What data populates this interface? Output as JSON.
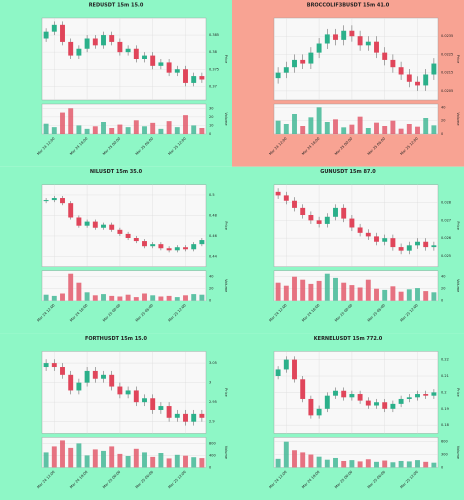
{
  "chart_data": [
    {
      "type": "candlestick",
      "title": "REDUSDT 15m 15.0",
      "background": "#8ef7c6",
      "up_color": "#2bb08a",
      "down_color": "#e0455a",
      "ylabel": "Price",
      "volume_label": "Volume",
      "open": [
        0.384,
        0.386,
        0.388,
        0.383,
        0.379,
        0.381,
        0.384,
        0.382,
        0.385,
        0.383,
        0.38,
        0.381,
        0.378,
        0.379,
        0.376,
        0.377,
        0.374,
        0.375,
        0.371,
        0.373
      ],
      "high": [
        0.387,
        0.389,
        0.389,
        0.384,
        0.382,
        0.385,
        0.385,
        0.386,
        0.386,
        0.384,
        0.382,
        0.382,
        0.38,
        0.38,
        0.378,
        0.378,
        0.376,
        0.376,
        0.374,
        0.374
      ],
      "low": [
        0.383,
        0.385,
        0.382,
        0.378,
        0.378,
        0.38,
        0.381,
        0.381,
        0.382,
        0.379,
        0.379,
        0.377,
        0.377,
        0.375,
        0.375,
        0.373,
        0.373,
        0.37,
        0.37,
        0.371
      ],
      "close": [
        0.386,
        0.388,
        0.383,
        0.379,
        0.381,
        0.384,
        0.382,
        0.385,
        0.383,
        0.38,
        0.381,
        0.378,
        0.379,
        0.376,
        0.377,
        0.374,
        0.375,
        0.371,
        0.373,
        0.372
      ],
      "volume": [
        12,
        8,
        25,
        30,
        10,
        6,
        9,
        14,
        7,
        11,
        8,
        16,
        9,
        13,
        6,
        15,
        8,
        22,
        10,
        7
      ],
      "ylim": [
        0.366,
        0.39
      ],
      "yticks": [
        0.37,
        0.375,
        0.38,
        0.385
      ],
      "volume_lim": [
        0,
        35
      ],
      "volume_ticks": [
        0,
        10,
        20,
        30
      ],
      "xticks": [
        {
          "value": 1,
          "label": "Mar 24 12:00"
        },
        {
          "value": 5,
          "label": "Mar 24 18:00"
        },
        {
          "value": 9,
          "label": "Mar 25 00:00"
        },
        {
          "value": 13,
          "label": "Mar 25 06:00"
        },
        {
          "value": 17,
          "label": "Mar 25 12:00"
        }
      ]
    },
    {
      "type": "candlestick",
      "title": "BROCCOLIF3BUSDT 15m 41.0",
      "background": "#f8a393",
      "up_color": "#2bb08a",
      "down_color": "#e0455a",
      "ylabel": "Price",
      "volume_label": "Volume",
      "open": [
        0.0212,
        0.0215,
        0.0218,
        0.0222,
        0.022,
        0.0226,
        0.0231,
        0.0236,
        0.0233,
        0.0238,
        0.0235,
        0.023,
        0.0232,
        0.0226,
        0.0222,
        0.0218,
        0.0214,
        0.021,
        0.0208,
        0.0214
      ],
      "high": [
        0.0218,
        0.0221,
        0.0225,
        0.0225,
        0.0229,
        0.0234,
        0.0239,
        0.0239,
        0.0241,
        0.0241,
        0.0238,
        0.0235,
        0.0235,
        0.0229,
        0.0225,
        0.0221,
        0.0217,
        0.0213,
        0.0217,
        0.0223
      ],
      "low": [
        0.0209,
        0.0212,
        0.0215,
        0.0217,
        0.0217,
        0.0223,
        0.0228,
        0.023,
        0.023,
        0.0232,
        0.0227,
        0.0227,
        0.0223,
        0.0219,
        0.0215,
        0.0211,
        0.0207,
        0.0205,
        0.0205,
        0.0211
      ],
      "close": [
        0.0215,
        0.0218,
        0.0222,
        0.022,
        0.0226,
        0.0231,
        0.0236,
        0.0233,
        0.0238,
        0.0235,
        0.023,
        0.0232,
        0.0226,
        0.0222,
        0.0218,
        0.0214,
        0.021,
        0.0208,
        0.0214,
        0.022
      ],
      "volume": [
        20,
        15,
        30,
        12,
        25,
        40,
        18,
        22,
        10,
        14,
        26,
        9,
        17,
        12,
        20,
        8,
        15,
        11,
        24,
        13
      ],
      "ylim": [
        0.02,
        0.0245
      ],
      "yticks": [
        0.0205,
        0.0215,
        0.0225,
        0.0235
      ],
      "volume_lim": [
        0,
        45
      ],
      "volume_ticks": [
        0,
        20,
        40
      ],
      "xticks": [
        {
          "value": 1,
          "label": "Mar 24 12:00"
        },
        {
          "value": 5,
          "label": "Mar 24 18:00"
        },
        {
          "value": 9,
          "label": "Mar 25 00:00"
        },
        {
          "value": 13,
          "label": "Mar 25 06:00"
        },
        {
          "value": 17,
          "label": "Mar 25 12:00"
        }
      ]
    },
    {
      "type": "candlestick",
      "title": "NILUSDT 15m 35.0",
      "background": "#8ef7c6",
      "up_color": "#2bb08a",
      "down_color": "#e0455a",
      "ylabel": "Price",
      "volume_label": "Volume",
      "open": [
        0.494,
        0.495,
        0.497,
        0.492,
        0.478,
        0.47,
        0.474,
        0.468,
        0.471,
        0.466,
        0.462,
        0.458,
        0.455,
        0.45,
        0.452,
        0.448,
        0.446,
        0.449,
        0.447,
        0.452
      ],
      "high": [
        0.497,
        0.499,
        0.499,
        0.494,
        0.48,
        0.476,
        0.476,
        0.473,
        0.473,
        0.468,
        0.464,
        0.46,
        0.457,
        0.454,
        0.454,
        0.45,
        0.451,
        0.451,
        0.454,
        0.458
      ],
      "low": [
        0.492,
        0.493,
        0.49,
        0.476,
        0.468,
        0.468,
        0.466,
        0.466,
        0.464,
        0.46,
        0.456,
        0.453,
        0.448,
        0.448,
        0.446,
        0.444,
        0.444,
        0.445,
        0.445,
        0.45
      ],
      "close": [
        0.495,
        0.497,
        0.492,
        0.478,
        0.47,
        0.474,
        0.468,
        0.471,
        0.466,
        0.462,
        0.458,
        0.455,
        0.45,
        0.452,
        0.448,
        0.446,
        0.449,
        0.447,
        0.452,
        0.456
      ],
      "volume": [
        10,
        8,
        12,
        45,
        30,
        14,
        9,
        11,
        8,
        7,
        10,
        6,
        12,
        9,
        7,
        8,
        6,
        9,
        11,
        10
      ],
      "ylim": [
        0.43,
        0.51
      ],
      "yticks": [
        0.44,
        0.46,
        0.48,
        0.5
      ],
      "volume_lim": [
        0,
        50
      ],
      "volume_ticks": [
        0,
        20,
        40
      ],
      "xticks": [
        {
          "value": 1,
          "label": "Mar 24 12:00"
        },
        {
          "value": 5,
          "label": "Mar 24 18:00"
        },
        {
          "value": 9,
          "label": "Mar 25 00:00"
        },
        {
          "value": 13,
          "label": "Mar 25 06:00"
        },
        {
          "value": 17,
          "label": "Mar 25 12:00"
        }
      ]
    },
    {
      "type": "candlestick",
      "title": "GUNUSDT 15m 87.0",
      "background": "#8ef7c6",
      "up_color": "#2bb08a",
      "down_color": "#e0455a",
      "ylabel": "Price",
      "volume_label": "Volume",
      "open": [
        0.0286,
        0.0284,
        0.0281,
        0.0277,
        0.0273,
        0.027,
        0.0268,
        0.0272,
        0.0277,
        0.0271,
        0.0266,
        0.0263,
        0.0261,
        0.0258,
        0.026,
        0.0255,
        0.0253,
        0.0256,
        0.0258,
        0.0255
      ],
      "high": [
        0.0288,
        0.0286,
        0.0283,
        0.0279,
        0.0275,
        0.0272,
        0.0274,
        0.0279,
        0.0279,
        0.0273,
        0.0268,
        0.0265,
        0.0263,
        0.0262,
        0.0262,
        0.0257,
        0.0258,
        0.026,
        0.026,
        0.0258
      ],
      "low": [
        0.0282,
        0.0279,
        0.0275,
        0.0271,
        0.0268,
        0.0266,
        0.0266,
        0.027,
        0.0269,
        0.0264,
        0.0261,
        0.0259,
        0.0256,
        0.0256,
        0.0253,
        0.0251,
        0.0251,
        0.0254,
        0.0253,
        0.0253
      ],
      "close": [
        0.0284,
        0.0281,
        0.0277,
        0.0273,
        0.027,
        0.0268,
        0.0272,
        0.0277,
        0.0271,
        0.0266,
        0.0263,
        0.0261,
        0.0258,
        0.026,
        0.0255,
        0.0253,
        0.0256,
        0.0258,
        0.0255,
        0.0256
      ],
      "volume": [
        30,
        25,
        40,
        35,
        28,
        33,
        45,
        38,
        30,
        26,
        22,
        35,
        20,
        18,
        24,
        15,
        19,
        21,
        16,
        14
      ],
      "ylim": [
        0.0244,
        0.029
      ],
      "yticks": [
        0.025,
        0.026,
        0.027,
        0.028
      ],
      "volume_lim": [
        0,
        50
      ],
      "volume_ticks": [
        0,
        20,
        40
      ],
      "xticks": [
        {
          "value": 1,
          "label": "Mar 24 12:00"
        },
        {
          "value": 5,
          "label": "Mar 24 18:00"
        },
        {
          "value": 9,
          "label": "Mar 25 00:00"
        },
        {
          "value": 13,
          "label": "Mar 25 06:00"
        },
        {
          "value": 17,
          "label": "Mar 25 12:00"
        }
      ]
    },
    {
      "type": "candlestick",
      "title": "FORTHUSDT 15m 15.0",
      "background": "#8ef7c6",
      "up_color": "#2bb08a",
      "down_color": "#e0455a",
      "ylabel": "Price",
      "volume_label": "Volume",
      "open": [
        3.04,
        3.05,
        3.04,
        3.02,
        2.98,
        3.0,
        3.03,
        3.01,
        3.02,
        2.99,
        2.97,
        2.98,
        2.95,
        2.96,
        2.93,
        2.94,
        2.91,
        2.92,
        2.9,
        2.92
      ],
      "high": [
        3.06,
        3.06,
        3.05,
        3.03,
        3.01,
        3.04,
        3.04,
        3.03,
        3.03,
        3.0,
        2.99,
        2.99,
        2.97,
        2.97,
        2.95,
        2.95,
        2.93,
        2.93,
        2.93,
        2.93
      ],
      "low": [
        3.03,
        3.03,
        3.01,
        2.97,
        2.97,
        2.99,
        3.0,
        3.0,
        2.98,
        2.96,
        2.96,
        2.94,
        2.94,
        2.92,
        2.92,
        2.9,
        2.9,
        2.89,
        2.89,
        2.9
      ],
      "close": [
        3.05,
        3.04,
        3.02,
        2.98,
        3.0,
        3.03,
        3.01,
        3.02,
        2.99,
        2.97,
        2.98,
        2.95,
        2.96,
        2.93,
        2.94,
        2.91,
        2.92,
        2.9,
        2.92,
        2.91
      ],
      "volume": [
        500,
        700,
        900,
        650,
        800,
        400,
        600,
        550,
        700,
        450,
        380,
        620,
        500,
        350,
        480,
        300,
        420,
        390,
        340,
        310
      ],
      "ylim": [
        2.87,
        3.08
      ],
      "yticks": [
        2.9,
        2.95,
        3,
        3.05
      ],
      "volume_lim": [
        0,
        1000
      ],
      "volume_ticks": [
        0,
        400,
        800
      ],
      "xticks": [
        {
          "value": 1,
          "label": "Mar 24 12:00"
        },
        {
          "value": 5,
          "label": "Mar 24 18:00"
        },
        {
          "value": 9,
          "label": "Mar 25 00:00"
        },
        {
          "value": 13,
          "label": "Mar 25 06:00"
        },
        {
          "value": 17,
          "label": "Mar 25 12:00"
        }
      ]
    },
    {
      "type": "candlestick",
      "title": "KERNELUSDT 15m 772.0",
      "background": "#8ef7c6",
      "up_color": "#2bb08a",
      "down_color": "#e0455a",
      "ylabel": "Price",
      "volume_label": "Volume",
      "open": [
        0.21,
        0.214,
        0.22,
        0.208,
        0.196,
        0.186,
        0.19,
        0.198,
        0.201,
        0.197,
        0.199,
        0.195,
        0.192,
        0.194,
        0.19,
        0.193,
        0.196,
        0.197,
        0.199,
        0.198
      ],
      "high": [
        0.216,
        0.222,
        0.222,
        0.21,
        0.198,
        0.192,
        0.2,
        0.203,
        0.203,
        0.201,
        0.201,
        0.197,
        0.196,
        0.196,
        0.195,
        0.198,
        0.199,
        0.201,
        0.201,
        0.202
      ],
      "low": [
        0.208,
        0.212,
        0.206,
        0.194,
        0.184,
        0.184,
        0.188,
        0.196,
        0.195,
        0.195,
        0.193,
        0.19,
        0.19,
        0.188,
        0.188,
        0.191,
        0.194,
        0.195,
        0.196,
        0.196
      ],
      "close": [
        0.214,
        0.22,
        0.208,
        0.196,
        0.186,
        0.19,
        0.198,
        0.201,
        0.197,
        0.199,
        0.195,
        0.192,
        0.194,
        0.19,
        0.193,
        0.196,
        0.197,
        0.199,
        0.198,
        0.2
      ],
      "volume": [
        200,
        600,
        400,
        350,
        300,
        250,
        180,
        220,
        150,
        170,
        140,
        190,
        130,
        160,
        120,
        150,
        140,
        170,
        130,
        110
      ],
      "ylim": [
        0.175,
        0.225
      ],
      "yticks": [
        0.18,
        0.19,
        0.2,
        0.21,
        0.22
      ],
      "volume_lim": [
        0,
        700
      ],
      "volume_ticks": [
        0,
        300,
        600
      ],
      "xticks": [
        {
          "value": 1,
          "label": "Mar 24 12:00"
        },
        {
          "value": 5,
          "label": "Mar 24 18:00"
        },
        {
          "value": 9,
          "label": "Mar 25 00:00"
        },
        {
          "value": 13,
          "label": "Mar 25 06:00"
        },
        {
          "value": 17,
          "label": "Mar 25 12:00"
        }
      ]
    }
  ]
}
